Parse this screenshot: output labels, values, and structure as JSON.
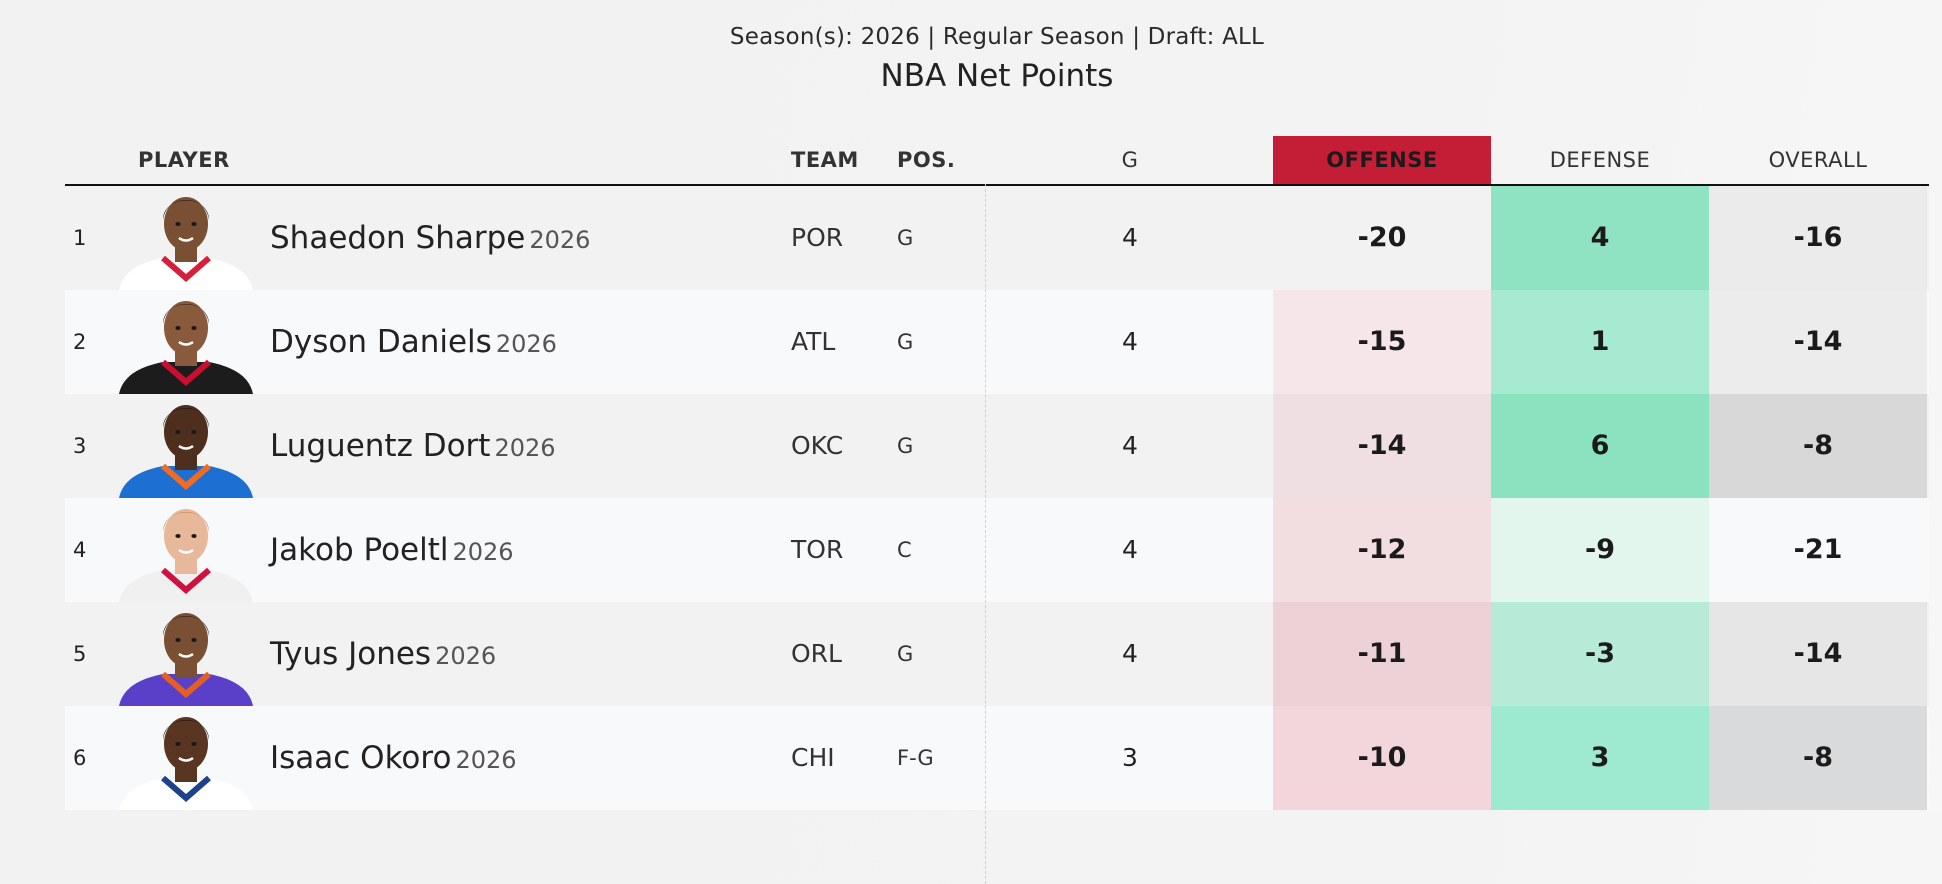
{
  "subtitle": "Season(s): 2026 | Regular Season | Draft: ALL",
  "title": "NBA Net Points",
  "headers": {
    "player": "PLAYER",
    "team": "TEAM",
    "pos": "POS.",
    "games": "G",
    "offense": "OFFENSE",
    "defense": "DEFENSE",
    "overall": "OVERALL"
  },
  "colors": {
    "offense_header": "#c41e36"
  },
  "rows": [
    {
      "rank": "1",
      "name": "Shaedon Sharpe",
      "year": "2026",
      "team": "POR",
      "pos": "G",
      "games": "4",
      "offense": "-20",
      "defense": "4",
      "overall": "-16",
      "off_bg": "#f2f2f2",
      "def_bg": "#8fe3c2",
      "ovr_bg": "#ebebeb",
      "jersey": "#ffffff",
      "trim": "#d6203a",
      "skin": "#7a5035",
      "hair": "#1a1410"
    },
    {
      "rank": "2",
      "name": "Dyson Daniels",
      "year": "2026",
      "team": "ATL",
      "pos": "G",
      "games": "4",
      "offense": "-15",
      "defense": "1",
      "overall": "-14",
      "off_bg": "#f6e6e9",
      "def_bg": "#a6ead1",
      "ovr_bg": "#ececec",
      "jersey": "#1c1c1c",
      "trim": "#c8102e",
      "skin": "#8a5a3c",
      "hair": "#2a1c14"
    },
    {
      "rank": "3",
      "name": "Luguentz Dort",
      "year": "2026",
      "team": "OKC",
      "pos": "G",
      "games": "4",
      "offense": "-14",
      "defense": "6",
      "overall": "-8",
      "off_bg": "#efdfe2",
      "def_bg": "#8ae2bf",
      "ovr_bg": "#d8d8d8",
      "jersey": "#1d6fd1",
      "trim": "#f26b21",
      "skin": "#4e2e1c",
      "hair": "#111111"
    },
    {
      "rank": "4",
      "name": "Jakob Poeltl",
      "year": "2026",
      "team": "TOR",
      "pos": "C",
      "games": "4",
      "offense": "-12",
      "defense": "-9",
      "overall": "-21",
      "off_bg": "#f2dde1",
      "def_bg": "#e3f6ee",
      "ovr_bg": "#f8f9fb",
      "jersey": "#f0f0f0",
      "trim": "#ce1141",
      "skin": "#e8b89a",
      "hair": "#c6794a"
    },
    {
      "rank": "5",
      "name": "Tyus Jones",
      "year": "2026",
      "team": "ORL",
      "pos": "G",
      "games": "4",
      "offense": "-11",
      "defense": "-3",
      "overall": "-14",
      "off_bg": "#ecd2d7",
      "def_bg": "#b7ebd8",
      "ovr_bg": "#e6e6e6",
      "jersey": "#5a3fc8",
      "trim": "#e56020",
      "skin": "#7a5035",
      "hair": "#1a1410"
    },
    {
      "rank": "6",
      "name": "Isaac Okoro",
      "year": "2026",
      "team": "CHI",
      "pos": "F-G",
      "games": "3",
      "offense": "-10",
      "defense": "3",
      "overall": "-8",
      "off_bg": "#f2d6db",
      "def_bg": "#9eead0",
      "ovr_bg": "#d9dadb",
      "jersey": "#ffffff",
      "trim": "#1d428a",
      "skin": "#5a3522",
      "hair": "#151010"
    }
  ]
}
